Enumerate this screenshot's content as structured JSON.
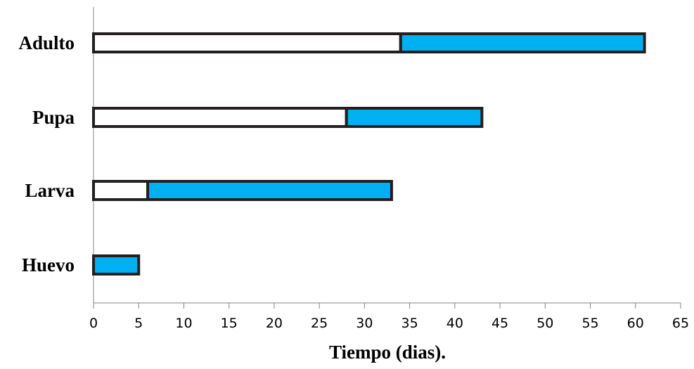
{
  "chart_data": {
    "type": "bar",
    "orientation": "horizontal",
    "stacked": true,
    "categories": [
      "Huevo",
      "Larva",
      "Pupa",
      "Adulto"
    ],
    "series": [
      {
        "values": [
          0,
          6,
          28,
          34
        ],
        "color": "#ffffff"
      },
      {
        "values": [
          5,
          27,
          15,
          27
        ],
        "color": "#00b0f0"
      }
    ],
    "title": "",
    "xlabel": "Tiempo (dias).",
    "ylabel": "",
    "xlim": [
      0,
      65
    ],
    "xticks": [
      "0",
      "5",
      "10",
      "15",
      "20",
      "25",
      "30",
      "35",
      "40",
      "45",
      "50",
      "55",
      "60",
      "65"
    ],
    "grid": false,
    "bar_outline_color": "#231f20"
  }
}
